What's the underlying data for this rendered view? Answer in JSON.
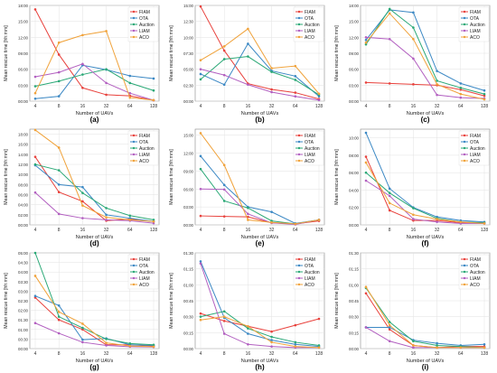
{
  "figure": {
    "background": "#ffffff"
  },
  "styles": {
    "series_colors": {
      "FIAM": "#e8413c",
      "OTA": "#3b88c4",
      "Auction": "#2aa876",
      "LIAM": "#b25fc0",
      "ACO": "#f0a23a"
    },
    "grid": true
  },
  "chart_data": [
    {
      "type": "line",
      "panel_label": "(a)",
      "xlabel": "Number of UAVs",
      "ylabel": "Mean rescue time [hh:mm]",
      "categories": [
        "4",
        "8",
        "16",
        "32",
        "64",
        "128"
      ],
      "ylim": [
        0,
        1080
      ],
      "yticks": [
        0,
        180,
        360,
        540,
        720,
        900,
        1080
      ],
      "ytick_labels": [
        "00:00",
        "03:00",
        "06:00",
        "09:00",
        "12:00",
        "15:00",
        "18:00"
      ],
      "legend": "top-right",
      "series": [
        {
          "name": "FIAM",
          "values": [
            1035,
            525,
            150,
            72,
            60,
            10
          ]
        },
        {
          "name": "OTA",
          "values": [
            28,
            55,
            405,
            355,
            285,
            255
          ]
        },
        {
          "name": "Auction",
          "values": [
            168,
            225,
            300,
            360,
            205,
            120
          ]
        },
        {
          "name": "LIAM",
          "values": [
            275,
            325,
            420,
            205,
            90,
            10
          ]
        },
        {
          "name": "ACO",
          "values": [
            90,
            660,
            745,
            790,
            40,
            12
          ]
        }
      ]
    },
    {
      "type": "line",
      "panel_label": "(b)",
      "xlabel": "Number of UAVs",
      "ylabel": "Mean rescue time [hh:mm]",
      "categories": [
        "4",
        "8",
        "16",
        "32",
        "64",
        "128"
      ],
      "ylim": [
        0,
        900
      ],
      "yticks": [
        0,
        150,
        300,
        450,
        600,
        750,
        900
      ],
      "ytick_labels": [
        "00:00",
        "02:30",
        "05:00",
        "07:30",
        "10:00",
        "12:30",
        "15:00"
      ],
      "legend": "top-right",
      "series": [
        {
          "name": "FIAM",
          "values": [
            890,
            475,
            165,
            110,
            80,
            20
          ]
        },
        {
          "name": "OTA",
          "values": [
            255,
            155,
            540,
            285,
            235,
            45
          ]
        },
        {
          "name": "Auction",
          "values": [
            205,
            395,
            420,
            275,
            200,
            60
          ]
        },
        {
          "name": "LIAM",
          "values": [
            300,
            245,
            155,
            85,
            45,
            10
          ]
        },
        {
          "name": "ACO",
          "values": [
            385,
            515,
            680,
            310,
            330,
            70
          ]
        }
      ]
    },
    {
      "type": "line",
      "panel_label": "(c)",
      "xlabel": "Number of UAVs",
      "ylabel": "Mean rescue time [hh:mm]",
      "categories": [
        "4",
        "8",
        "16",
        "32",
        "64",
        "128"
      ],
      "ylim": [
        0,
        1080
      ],
      "yticks": [
        0,
        180,
        360,
        540,
        720,
        900,
        1080
      ],
      "ytick_labels": [
        "00:00",
        "03:00",
        "06:00",
        "09:00",
        "12:00",
        "15:00",
        "18:00"
      ],
      "legend": "top-right",
      "series": [
        {
          "name": "FIAM",
          "values": [
            210,
            200,
            190,
            180,
            130,
            60
          ]
        },
        {
          "name": "OTA",
          "values": [
            690,
            1030,
            1000,
            340,
            200,
            120
          ]
        },
        {
          "name": "Auction",
          "values": [
            640,
            1040,
            830,
            230,
            150,
            80
          ]
        },
        {
          "name": "LIAM",
          "values": [
            720,
            700,
            480,
            70,
            40,
            30
          ]
        },
        {
          "name": "ACO",
          "values": [
            660,
            990,
            700,
            190,
            80,
            20
          ]
        }
      ]
    },
    {
      "type": "line",
      "panel_label": "(d)",
      "xlabel": "Number of UAVs",
      "ylabel": "Mean rescue time [hh:mm]",
      "categories": [
        "4",
        "8",
        "16",
        "32",
        "64",
        "128"
      ],
      "ylim": [
        0,
        1140
      ],
      "yticks": [
        0,
        120,
        240,
        360,
        480,
        600,
        720,
        840,
        960,
        1080
      ],
      "ytick_labels": [
        "00:00",
        "02:00",
        "04:00",
        "06:00",
        "08:00",
        "10:00",
        "12:00",
        "14:00",
        "16:00",
        "18:00"
      ],
      "legend": "top-right",
      "series": [
        {
          "name": "FIAM",
          "values": [
            810,
            390,
            280,
            50,
            70,
            40
          ]
        },
        {
          "name": "OTA",
          "values": [
            710,
            480,
            450,
            120,
            80,
            40
          ]
        },
        {
          "name": "Auction",
          "values": [
            720,
            650,
            380,
            200,
            110,
            60
          ]
        },
        {
          "name": "LIAM",
          "values": [
            385,
            130,
            80,
            60,
            50,
            20
          ]
        },
        {
          "name": "ACO",
          "values": [
            1130,
            920,
            230,
            90,
            60,
            40
          ]
        }
      ]
    },
    {
      "type": "line",
      "panel_label": "(e)",
      "xlabel": "Number of UAVs",
      "ylabel": "Mean rescue time [hh:mm]",
      "categories": [
        "4",
        "8",
        "16",
        "32",
        "64",
        "128"
      ],
      "ylim": [
        0,
        960
      ],
      "yticks": [
        0,
        180,
        360,
        540,
        720,
        900
      ],
      "ytick_labels": [
        "00:00",
        "03:00",
        "06:00",
        "09:00",
        "12:00",
        "15:00"
      ],
      "legend": "top-right",
      "series": [
        {
          "name": "FIAM",
          "values": [
            90,
            85,
            80,
            20,
            10,
            40
          ]
        },
        {
          "name": "OTA",
          "values": [
            690,
            400,
            180,
            130,
            15,
            50
          ]
        },
        {
          "name": "Auction",
          "values": [
            560,
            240,
            170,
            40,
            10,
            50
          ]
        },
        {
          "name": "LIAM",
          "values": [
            360,
            355,
            110,
            20,
            5,
            50
          ]
        },
        {
          "name": "ACO",
          "values": [
            920,
            600,
            50,
            25,
            10,
            50
          ]
        }
      ]
    },
    {
      "type": "line",
      "panel_label": "(f)",
      "xlabel": "Number of UAVs",
      "ylabel": "Mean rescue time [hh:mm]",
      "categories": [
        "4",
        "8",
        "16",
        "32",
        "64",
        "128"
      ],
      "ylim": [
        0,
        660
      ],
      "yticks": [
        0,
        120,
        240,
        360,
        480,
        600
      ],
      "ytick_labels": [
        "00:00",
        "02:00",
        "04:00",
        "06:00",
        "08:00",
        "10:00"
      ],
      "legend": "top-right",
      "series": [
        {
          "name": "FIAM",
          "values": [
            470,
            100,
            30,
            30,
            15,
            10
          ]
        },
        {
          "name": "OTA",
          "values": [
            635,
            250,
            120,
            55,
            30,
            20
          ]
        },
        {
          "name": "Auction",
          "values": [
            360,
            220,
            115,
            45,
            20,
            15
          ]
        },
        {
          "name": "LIAM",
          "values": [
            305,
            200,
            40,
            20,
            10,
            10
          ]
        },
        {
          "name": "ACO",
          "values": [
            430,
            150,
            70,
            40,
            20,
            10
          ]
        }
      ]
    },
    {
      "type": "line",
      "panel_label": "(g)",
      "xlabel": "Number of UAVs",
      "ylabel": "Mean rescue time [hh:mm]",
      "categories": [
        "4",
        "8",
        "16",
        "32",
        "64",
        "128"
      ],
      "ylim": [
        0,
        300
      ],
      "yticks": [
        0,
        30,
        60,
        90,
        120,
        150,
        180,
        210,
        240,
        270,
        300
      ],
      "ytick_labels": [
        "00:00",
        "00:30",
        "01:00",
        "01:30",
        "02:00",
        "02:30",
        "03:00",
        "03:30",
        "04:00",
        "04:30",
        "05:00"
      ],
      "legend": "top-right",
      "series": [
        {
          "name": "FIAM",
          "values": [
            160,
            90,
            60,
            12,
            12,
            8
          ]
        },
        {
          "name": "OTA",
          "values": [
            165,
            135,
            28,
            32,
            12,
            10
          ]
        },
        {
          "name": "Auction",
          "values": [
            300,
            100,
            65,
            30,
            16,
            12
          ]
        },
        {
          "name": "LIAM",
          "values": [
            80,
            48,
            20,
            10,
            6,
            5
          ]
        },
        {
          "name": "ACO",
          "values": [
            228,
            115,
            78,
            18,
            8,
            6
          ]
        }
      ]
    },
    {
      "type": "line",
      "panel_label": "(h)",
      "xlabel": "Number of UAVs",
      "ylabel": "Mean rescue time [hh:mm]",
      "categories": [
        "4",
        "8",
        "16",
        "32",
        "64",
        "128"
      ],
      "ylim": [
        0,
        90
      ],
      "yticks": [
        0,
        15,
        30,
        45,
        60,
        75,
        90
      ],
      "ytick_labels": [
        "00:00",
        "00:15",
        "00:30",
        "00:45",
        "01:00",
        "01:15",
        "01:30"
      ],
      "legend": "top-right",
      "series": [
        {
          "name": "FIAM",
          "values": [
            33,
            26,
            21,
            16,
            22,
            28
          ]
        },
        {
          "name": "OTA",
          "values": [
            82,
            29,
            14,
            8,
            4,
            2
          ]
        },
        {
          "name": "Auction",
          "values": [
            30,
            35,
            19,
            11,
            6,
            3
          ]
        },
        {
          "name": "LIAM",
          "values": [
            80,
            14,
            4,
            2,
            1,
            1
          ]
        },
        {
          "name": "ACO",
          "values": [
            27,
            30,
            21,
            6,
            2,
            1
          ]
        }
      ]
    },
    {
      "type": "line",
      "panel_label": "(i)",
      "xlabel": "Number of UAVs",
      "ylabel": "Mean rescue time [hh:mm]",
      "categories": [
        "4",
        "8",
        "16",
        "32",
        "64",
        "128"
      ],
      "ylim": [
        0,
        90
      ],
      "yticks": [
        0,
        15,
        30,
        45,
        60,
        75,
        90
      ],
      "ytick_labels": [
        "00:00",
        "00:15",
        "00:30",
        "00:45",
        "01:00",
        "01:15",
        "01:30"
      ],
      "legend": "top-right",
      "series": [
        {
          "name": "FIAM",
          "values": [
            52,
            18,
            3,
            1,
            2,
            2
          ]
        },
        {
          "name": "OTA",
          "values": [
            20,
            20,
            8,
            5,
            3,
            4
          ]
        },
        {
          "name": "Auction",
          "values": [
            57,
            25,
            7,
            3,
            2,
            1
          ]
        },
        {
          "name": "LIAM",
          "values": [
            20,
            7,
            1,
            1,
            1,
            1
          ]
        },
        {
          "name": "ACO",
          "values": [
            58,
            22,
            3,
            1,
            1,
            1
          ]
        }
      ]
    }
  ]
}
